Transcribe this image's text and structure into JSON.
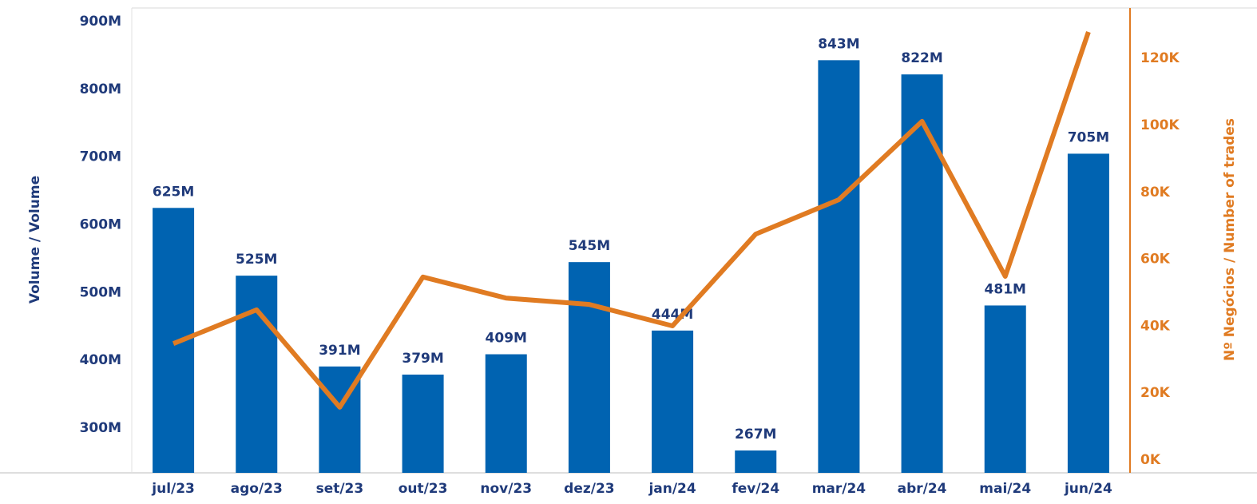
{
  "chart_data": {
    "type": "bar-line",
    "categories": [
      "jul/23",
      "ago/23",
      "set/23",
      "out/23",
      "nov/23",
      "dez/23",
      "jan/24",
      "fev/24",
      "mar/24",
      "abr/24",
      "mai/24",
      "jun/24"
    ],
    "series": [
      {
        "name": "Volume / Volume",
        "type": "bar",
        "color": "#0063b1",
        "values": [
          625,
          525,
          391,
          379,
          409,
          545,
          444,
          267,
          843,
          822,
          481,
          705
        ],
        "value_labels": [
          "625M",
          "525M",
          "391M",
          "379M",
          "409M",
          "545M",
          "444M",
          "267M",
          "843M",
          "822M",
          "481M",
          "705M"
        ]
      },
      {
        "name": "Nº Negócios / Number of trades",
        "type": "line",
        "axis": "y2",
        "color": "#e07b22",
        "values": [
          34800,
          44900,
          15800,
          54700,
          48400,
          46500,
          40100,
          67500,
          77800,
          101200,
          54900,
          127900
        ]
      }
    ],
    "ylabel": "Volume / Volume",
    "y2label": "Nº Negócios / Number of trades",
    "ylim": [
      234,
      900
    ],
    "yticks": [
      {
        "value": 300,
        "label": "300M"
      },
      {
        "value": 400,
        "label": "400M"
      },
      {
        "value": 500,
        "label": "500M"
      },
      {
        "value": 600,
        "label": "600M"
      },
      {
        "value": 700,
        "label": "700M"
      },
      {
        "value": 800,
        "label": "800M"
      },
      {
        "value": 900,
        "label": "900M"
      }
    ],
    "y2lim": [
      -3800,
      131000
    ],
    "y2ticks": [
      {
        "value": 0,
        "label": "0K"
      },
      {
        "value": 20000,
        "label": "20K"
      },
      {
        "value": 40000,
        "label": "40K"
      },
      {
        "value": 60000,
        "label": "60K"
      },
      {
        "value": 80000,
        "label": "80K"
      },
      {
        "value": 100000,
        "label": "100K"
      },
      {
        "value": 120000,
        "label": "120K"
      }
    ]
  }
}
